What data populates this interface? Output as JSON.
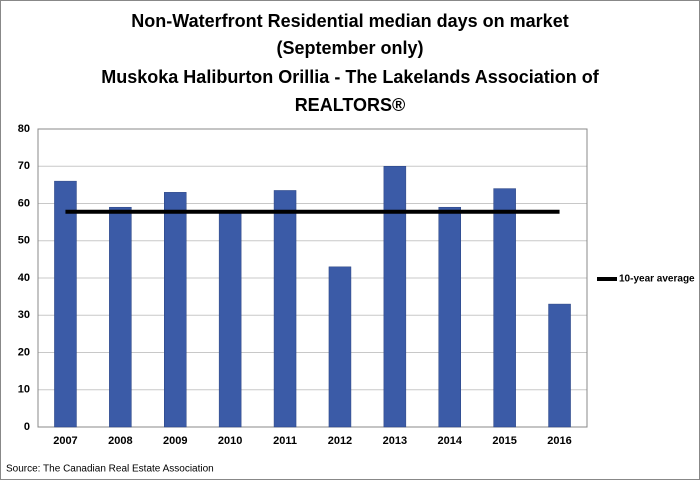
{
  "chart_data": {
    "type": "bar",
    "title": [
      "Non-Waterfront Residential median days on market",
      "(September only)",
      "Muskoka Haliburton Orillia - The Lakelands Association of",
      "REALTORS®"
    ],
    "categories": [
      "2007",
      "2008",
      "2009",
      "2010",
      "2011",
      "2012",
      "2013",
      "2014",
      "2015",
      "2016"
    ],
    "series": [
      {
        "type": "bar",
        "color": "#3b5ba7",
        "values": [
          66,
          59,
          63,
          57.5,
          63.5,
          43,
          70,
          59,
          64,
          33
        ]
      },
      {
        "type": "line",
        "name": "10-year average",
        "color": "#000000",
        "values": [
          57.8,
          57.8,
          57.8,
          57.8,
          57.8,
          57.8,
          57.8,
          57.8,
          57.8,
          57.8
        ]
      }
    ],
    "ylim": [
      0,
      80
    ],
    "yticks": [
      0,
      10,
      20,
      30,
      40,
      50,
      60,
      70,
      80
    ],
    "grid": true,
    "legend": "right",
    "source": "Source: The Canadian Real Estate Association"
  }
}
